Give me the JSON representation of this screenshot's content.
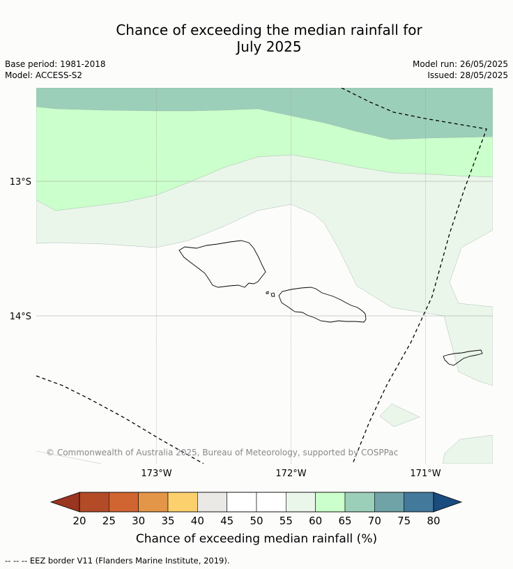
{
  "title_line1": "Chance of exceeding the median rainfall for",
  "title_line2": "July 2025",
  "meta": {
    "base_period": "Base period: 1981-2018",
    "model": "Model: ACCESS-S2",
    "model_run": "Model run: 26/05/2025",
    "issued": "Issued: 28/05/2025"
  },
  "map": {
    "lat_labels": [
      "13°S",
      "14°S"
    ],
    "lon_labels": [
      "173°W",
      "172°W",
      "171°W"
    ],
    "copyright": "© Commonwealth of Australia 2025, Bureau of Meteorology, supported by COSPPac"
  },
  "legend": {
    "title": "Chance of exceeding median rainfall (%)",
    "ticks": [
      "20",
      "25",
      "30",
      "35",
      "40",
      "45",
      "50",
      "55",
      "60",
      "65",
      "70",
      "75",
      "80"
    ],
    "colors": [
      "#b34b27",
      "#d06532",
      "#e39548",
      "#fdd06e",
      "#ebe9e6",
      "#ffffff",
      "#ffffff",
      "#ebf6ea",
      "#cbffcb",
      "#9ccfba",
      "#6fa3a8",
      "#43799b"
    ],
    "under_color": "#9a3520",
    "over_color": "#1a4c7f"
  },
  "footnote": "-- -- -- EEZ border V11 (Flanders Marine Institute, 2019)."
}
